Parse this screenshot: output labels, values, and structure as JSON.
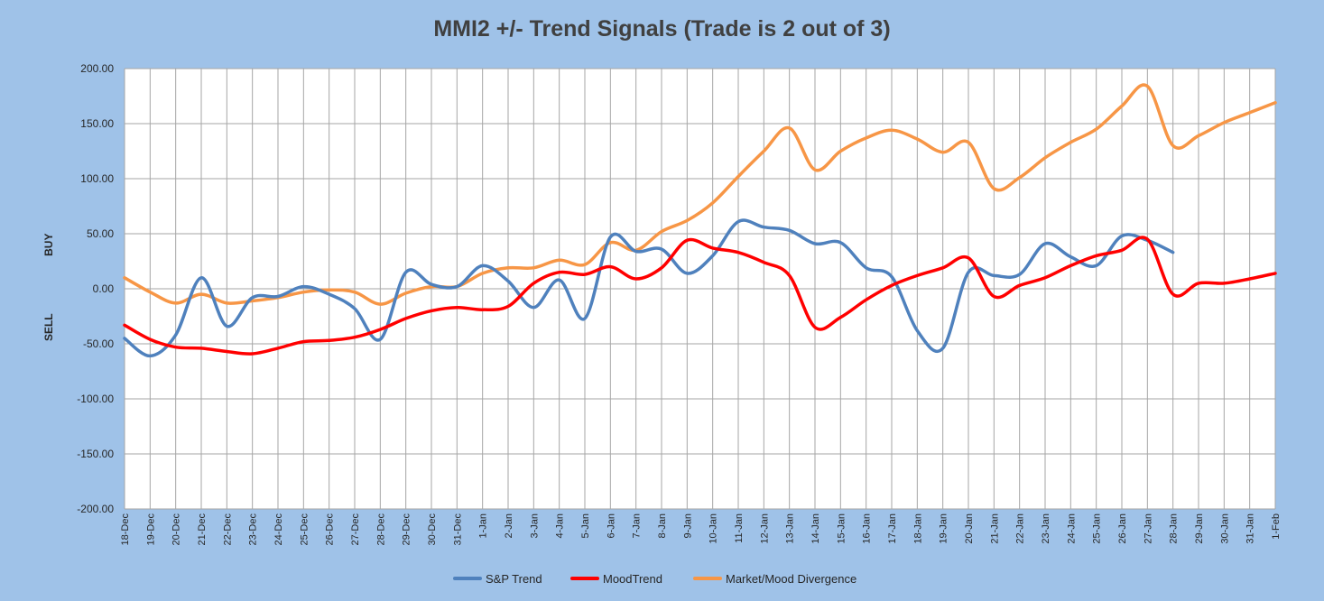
{
  "chart_data": {
    "type": "line",
    "title": "MMI2 +/- Trend Signals (Trade is 2 out of 3)",
    "xlabel": "",
    "ylabel": "",
    "side_labels": {
      "upper": "BUY",
      "lower": "SELL"
    },
    "ylim": [
      -200,
      200
    ],
    "yticks": [
      "200.00",
      "150.00",
      "100.00",
      "50.00",
      "0.00",
      "-50.00",
      "-100.00",
      "-150.00",
      "-200.00"
    ],
    "grid": true,
    "legend_position": "bottom",
    "categories": [
      "18-Dec",
      "19-Dec",
      "20-Dec",
      "21-Dec",
      "22-Dec",
      "23-Dec",
      "24-Dec",
      "25-Dec",
      "26-Dec",
      "27-Dec",
      "28-Dec",
      "29-Dec",
      "30-Dec",
      "31-Dec",
      "1-Jan",
      "2-Jan",
      "3-Jan",
      "4-Jan",
      "5-Jan",
      "6-Jan",
      "7-Jan",
      "8-Jan",
      "9-Jan",
      "10-Jan",
      "11-Jan",
      "12-Jan",
      "13-Jan",
      "14-Jan",
      "15-Jan",
      "16-Jan",
      "17-Jan",
      "18-Jan",
      "19-Jan",
      "20-Jan",
      "21-Jan",
      "22-Jan",
      "23-Jan",
      "24-Jan",
      "25-Jan",
      "26-Jan",
      "27-Jan",
      "28-Jan",
      "29-Jan",
      "30-Jan",
      "31-Jan",
      "1-Feb"
    ],
    "series": [
      {
        "name": "S&P Trend",
        "color": "#4f81bd",
        "values": [
          -45,
          -61,
          -42,
          10,
          -34,
          -8,
          -7,
          2,
          -5,
          -18,
          -46,
          15,
          4,
          2,
          21,
          7,
          -17,
          8,
          -27,
          47,
          34,
          36,
          14,
          30,
          61,
          56,
          53,
          41,
          42,
          19,
          11,
          -38,
          -54,
          15,
          12,
          13,
          41,
          29,
          21,
          48,
          44,
          33,
          null,
          null,
          null,
          null
        ]
      },
      {
        "name": "MoodTrend",
        "color": "#ff0000",
        "values": [
          -33,
          -46,
          -53,
          -54,
          -57,
          -59,
          -54,
          -48,
          -47,
          -44,
          -37,
          -27,
          -20,
          -17,
          -19,
          -16,
          5,
          15,
          13,
          20,
          9,
          19,
          44,
          37,
          33,
          24,
          12,
          -35,
          -26,
          -10,
          3,
          12,
          19,
          28,
          -7,
          3,
          10,
          21,
          30,
          35,
          45,
          -5,
          5,
          5,
          9,
          14
        ]
      },
      {
        "name": "Market/Mood Divergence",
        "color": "#f79646",
        "values": [
          10,
          -3,
          -13,
          -5,
          -13,
          -11,
          -8,
          -3,
          -1,
          -3,
          -14,
          -4,
          2,
          2,
          14,
          19,
          19,
          26,
          22,
          42,
          35,
          52,
          62,
          78,
          102,
          125,
          146,
          108,
          125,
          137,
          144,
          136,
          124,
          133,
          91,
          101,
          119,
          133,
          145,
          166,
          184,
          130,
          139,
          151,
          160,
          169
        ]
      }
    ]
  }
}
